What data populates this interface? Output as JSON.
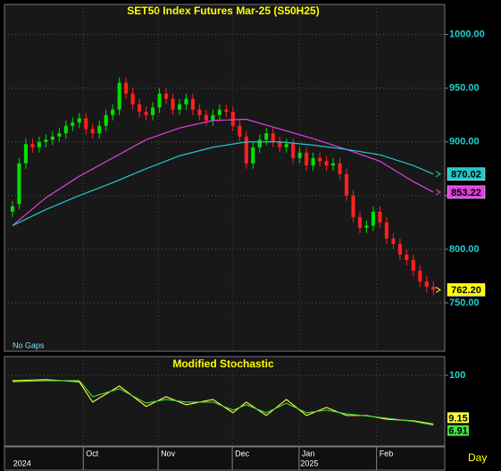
{
  "chart_data": [
    {
      "type": "candlestick",
      "title": "SET50  Index  Futures  Mar-25  (S50H25)",
      "note": "No  Gaps",
      "period": "Day",
      "open": [
        835,
        842,
        880,
        898,
        895,
        900,
        902,
        905,
        908,
        915,
        918,
        922,
        912,
        908,
        915,
        925,
        930,
        955,
        945,
        935,
        928,
        925,
        932,
        945,
        940,
        930,
        935,
        940,
        930,
        925,
        920,
        925,
        930,
        928,
        915,
        905,
        880,
        895,
        902,
        908,
        900,
        895,
        898,
        885,
        890,
        878,
        885,
        882,
        878,
        880,
        870,
        850,
        830,
        820,
        822,
        835,
        825,
        810,
        805,
        795,
        790,
        780,
        770,
        765
      ],
      "high": [
        845,
        885,
        903,
        903,
        905,
        907,
        910,
        913,
        920,
        923,
        927,
        927,
        917,
        920,
        930,
        935,
        960,
        960,
        950,
        940,
        933,
        937,
        950,
        950,
        945,
        940,
        945,
        945,
        935,
        930,
        930,
        935,
        935,
        933,
        920,
        910,
        900,
        907,
        913,
        913,
        905,
        903,
        903,
        895,
        895,
        890,
        890,
        887,
        885,
        885,
        875,
        855,
        835,
        827,
        840,
        840,
        830,
        815,
        810,
        800,
        795,
        785,
        775,
        770
      ],
      "low": [
        830,
        837,
        875,
        890,
        890,
        895,
        897,
        900,
        903,
        910,
        913,
        907,
        903,
        903,
        910,
        920,
        925,
        940,
        930,
        923,
        920,
        920,
        927,
        935,
        925,
        925,
        930,
        925,
        920,
        915,
        915,
        920,
        923,
        910,
        900,
        875,
        875,
        890,
        897,
        895,
        890,
        890,
        880,
        880,
        873,
        873,
        877,
        873,
        873,
        865,
        845,
        825,
        815,
        815,
        817,
        820,
        805,
        800,
        790,
        785,
        775,
        765,
        760,
        757
      ],
      "close": [
        840,
        880,
        898,
        895,
        900,
        902,
        905,
        908,
        915,
        918,
        922,
        912,
        908,
        915,
        925,
        930,
        955,
        945,
        935,
        928,
        925,
        932,
        945,
        940,
        930,
        935,
        940,
        930,
        925,
        920,
        925,
        930,
        928,
        915,
        905,
        880,
        895,
        902,
        908,
        900,
        895,
        898,
        885,
        890,
        878,
        885,
        882,
        878,
        880,
        870,
        850,
        830,
        820,
        822,
        835,
        825,
        810,
        805,
        795,
        790,
        780,
        770,
        765,
        762.2
      ],
      "last_label": "762.20",
      "up_color": "#00e000",
      "down_color": "#ff2020",
      "last_color": "#ffff00",
      "ylim": [
        705,
        1028
      ],
      "yticks": [
        {
          "value": 750,
          "label": "750.00"
        },
        {
          "value": 800,
          "label": "800.00"
        },
        {
          "value": 850,
          "label": "850.00"
        },
        {
          "value": 900,
          "label": "900.00"
        },
        {
          "value": 950,
          "label": "950.00"
        },
        {
          "value": 1000,
          "label": "1000.00"
        }
      ],
      "xlim": [
        -1.2,
        64.7
      ],
      "xticks": [
        {
          "value": 10.6,
          "label": "Oct"
        },
        {
          "value": 21.8,
          "label": "Nov"
        },
        {
          "value": 32.9,
          "label": "Dec"
        },
        {
          "value": 42.9,
          "label": "Jan"
        },
        {
          "value": 54.5,
          "label": "Feb"
        }
      ],
      "years": [
        {
          "value": 0.1,
          "label": "2024"
        },
        {
          "value": 43.1,
          "label": "2025"
        }
      ],
      "grid": true,
      "overlays": [
        {
          "color": "#e040e0",
          "x": [
            0,
            5,
            10,
            15,
            20,
            25,
            30,
            35,
            40,
            45,
            50,
            55,
            60,
            63
          ],
          "values": [
            822,
            848,
            868,
            885,
            902,
            913,
            920,
            921,
            912,
            903,
            893,
            882,
            863,
            853.22
          ],
          "last_label": "853.22"
        },
        {
          "color": "#20c8c8",
          "x": [
            0,
            5,
            10,
            15,
            20,
            25,
            30,
            35,
            40,
            45,
            50,
            55,
            60,
            63
          ],
          "values": [
            822,
            837,
            850,
            862,
            875,
            887,
            895,
            900,
            900,
            897,
            893,
            888,
            878,
            870.02
          ],
          "last_label": "870.02"
        }
      ]
    },
    {
      "type": "line",
      "title": "Modified  Stochastic",
      "ylim": [
        -32,
        135
      ],
      "yticks": [
        100
      ],
      "xlim": [
        -1.2,
        64.7
      ],
      "grid": true,
      "series": [
        {
          "color": "#ffff40",
          "x": [
            0,
            5,
            10,
            12,
            16,
            20,
            23,
            26,
            30,
            33,
            35,
            38,
            41,
            44,
            47,
            50,
            53,
            56,
            60,
            63
          ],
          "values": [
            90,
            92,
            88,
            50,
            80,
            42,
            60,
            45,
            55,
            30,
            50,
            25,
            55,
            25,
            40,
            25,
            25,
            18,
            15,
            9.15
          ]
        },
        {
          "color": "#40e040",
          "x": [
            0,
            5,
            10,
            12,
            16,
            20,
            23,
            26,
            30,
            33,
            35,
            38,
            41,
            44,
            47,
            50,
            53,
            56,
            60,
            63
          ],
          "values": [
            88,
            90,
            90,
            60,
            75,
            48,
            55,
            50,
            50,
            35,
            45,
            30,
            48,
            30,
            35,
            28,
            24,
            20,
            14,
            6.91
          ]
        }
      ]
    }
  ]
}
